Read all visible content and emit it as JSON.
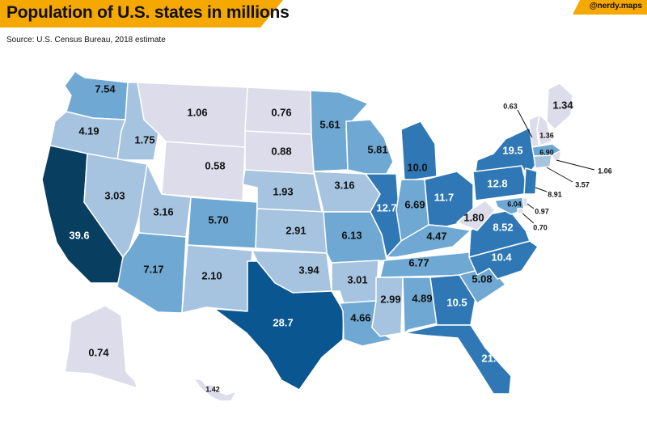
{
  "header": {
    "title": "Population of U.S. states in millions",
    "handle": "@nerdy.maps",
    "source": "Source: U.S. Census Bureau, 2018 estimate"
  },
  "colors": {
    "banner": "#f5a800",
    "scale": [
      "#dcdcea",
      "#a6c4e0",
      "#6ea8d3",
      "#2f78b5",
      "#0a5690",
      "#083f60"
    ]
  },
  "states": [
    {
      "id": "WA",
      "value": "7.54",
      "shade": 2
    },
    {
      "id": "OR",
      "value": "4.19",
      "shade": 1
    },
    {
      "id": "CA",
      "value": "39.6",
      "shade": 5
    },
    {
      "id": "ID",
      "value": "1.75",
      "shade": 1
    },
    {
      "id": "NV",
      "value": "3.03",
      "shade": 1
    },
    {
      "id": "MT",
      "value": "1.06",
      "shade": 0
    },
    {
      "id": "WY",
      "value": "0.58",
      "shade": 0
    },
    {
      "id": "UT",
      "value": "3.16",
      "shade": 1
    },
    {
      "id": "AZ",
      "value": "7.17",
      "shade": 2
    },
    {
      "id": "CO",
      "value": "5.70",
      "shade": 2
    },
    {
      "id": "NM",
      "value": "2.10",
      "shade": 1
    },
    {
      "id": "ND",
      "value": "0.76",
      "shade": 0
    },
    {
      "id": "SD",
      "value": "0.88",
      "shade": 0
    },
    {
      "id": "NE",
      "value": "1.93",
      "shade": 1
    },
    {
      "id": "KS",
      "value": "2.91",
      "shade": 1
    },
    {
      "id": "OK",
      "value": "3.94",
      "shade": 1
    },
    {
      "id": "TX",
      "value": "28.7",
      "shade": 4
    },
    {
      "id": "MN",
      "value": "5.61",
      "shade": 2
    },
    {
      "id": "IA",
      "value": "3.16",
      "shade": 1
    },
    {
      "id": "MO",
      "value": "6.13",
      "shade": 2
    },
    {
      "id": "AR",
      "value": "3.01",
      "shade": 1
    },
    {
      "id": "LA",
      "value": "4.66",
      "shade": 2
    },
    {
      "id": "WI",
      "value": "5.81",
      "shade": 2
    },
    {
      "id": "IL",
      "value": "12.7",
      "shade": 3
    },
    {
      "id": "MI",
      "value": "10.0",
      "shade": 3
    },
    {
      "id": "IN",
      "value": "6.69",
      "shade": 2
    },
    {
      "id": "OH",
      "value": "11.7",
      "shade": 3
    },
    {
      "id": "KY",
      "value": "4.47",
      "shade": 2
    },
    {
      "id": "TN",
      "value": "6.77",
      "shade": 2
    },
    {
      "id": "MS",
      "value": "2.99",
      "shade": 1
    },
    {
      "id": "AL",
      "value": "4.89",
      "shade": 2
    },
    {
      "id": "GA",
      "value": "10.5",
      "shade": 3
    },
    {
      "id": "FL",
      "value": "21.3",
      "shade": 3
    },
    {
      "id": "SC",
      "value": "5.08",
      "shade": 2
    },
    {
      "id": "NC",
      "value": "10.4",
      "shade": 3
    },
    {
      "id": "VA",
      "value": "8.52",
      "shade": 3
    },
    {
      "id": "WV",
      "value": "1.80",
      "shade": 0
    },
    {
      "id": "PA",
      "value": "12.8",
      "shade": 3
    },
    {
      "id": "NY",
      "value": "19.5",
      "shade": 3
    },
    {
      "id": "ME",
      "value": "1.34",
      "shade": 0
    },
    {
      "id": "NH",
      "value": "1.36",
      "shade": 0
    },
    {
      "id": "VT",
      "value": "0.63",
      "shade": 0
    },
    {
      "id": "MA",
      "value": "6.90",
      "shade": 2
    },
    {
      "id": "RI",
      "value": "1.06",
      "shade": 0
    },
    {
      "id": "CT",
      "value": "3.57",
      "shade": 1
    },
    {
      "id": "NJ",
      "value": "8.91",
      "shade": 3
    },
    {
      "id": "DE",
      "value": "0.97",
      "shade": 0
    },
    {
      "id": "MD",
      "value": "6.04",
      "shade": 2
    },
    {
      "id": "DC",
      "value": "0.70",
      "shade": 0
    },
    {
      "id": "AK",
      "value": "0.74",
      "shade": 0
    },
    {
      "id": "HI",
      "value": "1.42",
      "shade": 0
    }
  ]
}
